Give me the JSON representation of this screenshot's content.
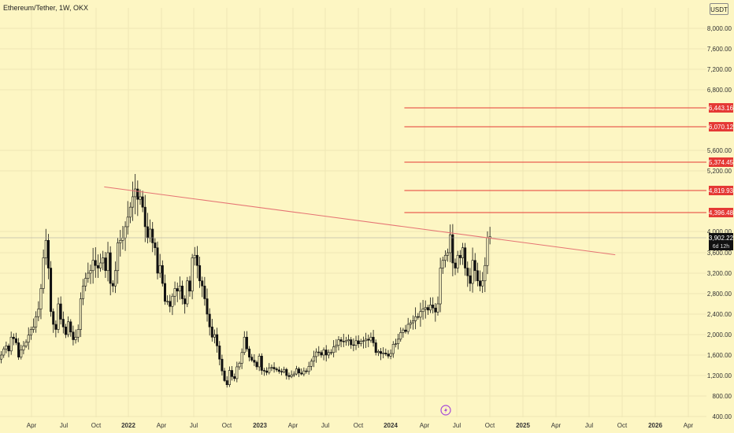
{
  "header": {
    "symbol_title": "Ethereum/Tether, 1W, OKX",
    "currency_button": "USDT"
  },
  "colors": {
    "background": "#fdf6c3",
    "candle": "#111111",
    "level_line": "#e53935",
    "trendline": "#e57373",
    "grid": "#efe7b5",
    "axis_text": "#333333",
    "price_line": "#9e9e9e"
  },
  "icons": [
    "lightning-icon"
  ],
  "chart_data": {
    "type": "candlestick",
    "y_ticks": [
      "8,000.00",
      "7,600.00",
      "7,200.00",
      "6,800.00",
      "5,600.00",
      "5,200.00",
      "4,000.00",
      "3,600.00",
      "3,200.00",
      "2,800.00",
      "2,400.00",
      "2,000.00",
      "1,600.00",
      "1,200.00",
      "800.00",
      "400.00"
    ],
    "y_tick_values": [
      8000,
      7600,
      7200,
      6800,
      5600,
      5200,
      4000,
      3600,
      3200,
      2800,
      2400,
      2000,
      1600,
      1200,
      800,
      400
    ],
    "x_ticks": [
      "Apr",
      "Jul",
      "Oct",
      "2022",
      "Apr",
      "Jul",
      "Oct",
      "2023",
      "Apr",
      "Jul",
      "Oct",
      "2024",
      "Apr",
      "Jul",
      "Oct",
      "2025",
      "Apr",
      "Jul",
      "Oct",
      "2026",
      "Apr"
    ],
    "x_tick_bold": [
      false,
      false,
      false,
      true,
      false,
      false,
      false,
      true,
      false,
      false,
      false,
      true,
      false,
      false,
      false,
      true,
      false,
      false,
      false,
      true,
      false
    ],
    "x_range": [
      "2021-01-18",
      "2026-06-01"
    ],
    "y_range": [
      390,
      8300
    ],
    "horizontal_levels": [
      {
        "value": 6443.16,
        "label": "6,443.16"
      },
      {
        "value": 6070.12,
        "label": "6,070.12"
      },
      {
        "value": 5374.45,
        "label": "5,374.45"
      },
      {
        "value": 4819.93,
        "label": "4,819.93"
      },
      {
        "value": 4396.48,
        "label": "4,396.48"
      }
    ],
    "levels_start": "2024-03-04",
    "current_price": {
      "value": 3902.22,
      "label": "3,902.22",
      "countdown": "6d 12h"
    },
    "trendline": {
      "from": {
        "x": "2021-11-08",
        "y": 4890
      },
      "to": {
        "x": "2025-10-20",
        "y": 3560
      }
    },
    "weekly_closes": [
      1600,
      1720,
      1780,
      1680,
      1950,
      1920,
      1840,
      1560,
      1700,
      1780,
      1850,
      1990,
      2100,
      2150,
      2350,
      2500,
      2900,
      3500,
      3850,
      3300,
      2450,
      2200,
      2100,
      2600,
      2300,
      2150,
      2000,
      2250,
      2050,
      1900,
      1950,
      2100,
      2700,
      2950,
      3100,
      3200,
      3250,
      3450,
      3350,
      3300,
      3400,
      3500,
      3250,
      3600,
      3000,
      2950,
      3250,
      3800,
      3850,
      3900,
      4100,
      4300,
      4500,
      4700,
      4850,
      4650,
      4700,
      4500,
      4100,
      3900,
      4050,
      3800,
      3700,
      3200,
      3350,
      3000,
      2650,
      2650,
      2550,
      2750,
      2900,
      2850,
      2950,
      2700,
      2600,
      3050,
      2850,
      3500,
      3550,
      3350,
      3050,
      2950,
      2700,
      2400,
      2150,
      1950,
      2000,
      1780,
      1520,
      1290,
      1100,
      1020,
      1300,
      1180,
      1140,
      1370,
      1440,
      1650,
      1950,
      1720,
      1560,
      1500,
      1460,
      1370,
      1580,
      1300,
      1290,
      1260,
      1350,
      1360,
      1330,
      1310,
      1280,
      1270,
      1320,
      1200,
      1180,
      1210,
      1230,
      1330,
      1250,
      1230,
      1290,
      1280,
      1380,
      1480,
      1570,
      1660,
      1650,
      1600,
      1700,
      1600,
      1650,
      1650,
      1760,
      1790,
      1900,
      1870,
      1860,
      1880,
      1900,
      1800,
      1790,
      1880,
      1820,
      1870,
      1880,
      1910,
      1890,
      1950,
      1840,
      1650,
      1670,
      1630,
      1640,
      1620,
      1580,
      1630,
      1810,
      1820,
      1910,
      2040,
      2090,
      2060,
      2200,
      2230,
      2270,
      2350,
      2340,
      2450,
      2500,
      2530,
      2480,
      2580,
      2520,
      2440,
      2600,
      3300,
      3450,
      3550,
      3600,
      3950,
      3400,
      3300,
      3550,
      3500,
      3700,
      3300,
      3150,
      3000,
      3450,
      3250,
      3050,
      2950,
      3050,
      3350,
      3900,
      3920
    ]
  }
}
